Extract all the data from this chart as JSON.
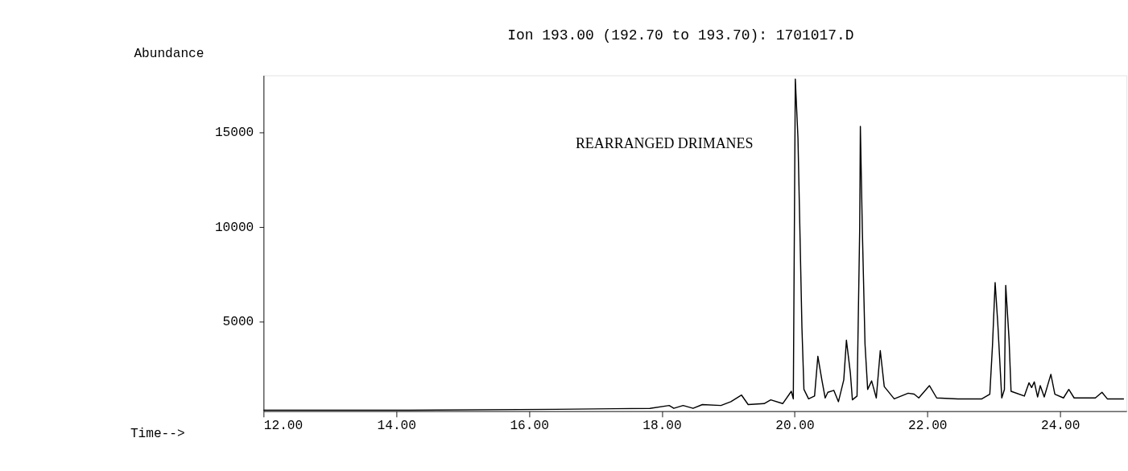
{
  "chart_data": {
    "type": "line",
    "title": "Ion 193.00 (192.70 to 193.70): 1701017.D",
    "xlabel": "Time-->",
    "ylabel": "Abundance",
    "annotations": [
      "REARRANGED DRIMANES"
    ],
    "xlim": [
      12,
      25
    ],
    "xticks": [
      {
        "value": 12,
        "label": "12.00"
      },
      {
        "value": 14,
        "label": "14.00"
      },
      {
        "value": 16,
        "label": "16.00"
      },
      {
        "value": 18,
        "label": "18.00"
      },
      {
        "value": 20,
        "label": "20.00"
      },
      {
        "value": 22,
        "label": "22.00"
      },
      {
        "value": 24,
        "label": "24.00"
      }
    ],
    "ylim": [
      250,
      18000
    ],
    "yticks": [
      5000,
      10000,
      15000
    ],
    "grid": false,
    "marker": "none",
    "line_style": "solid",
    "series": [
      {
        "color": "#000000",
        "x": [
          12.0,
          14.0,
          16.4,
          17.82,
          18.11,
          18.18,
          18.32,
          18.47,
          18.61,
          18.89,
          19.04,
          19.2,
          19.3,
          19.54,
          19.64,
          19.82,
          19.95,
          19.98,
          20.01,
          20.05,
          20.11,
          20.14,
          20.21,
          20.3,
          20.35,
          20.41,
          20.46,
          20.5,
          20.59,
          20.66,
          20.74,
          20.78,
          20.84,
          20.87,
          20.94,
          20.98,
          20.99,
          21.02,
          21.06,
          21.1,
          21.16,
          21.23,
          21.29,
          21.35,
          21.5,
          21.71,
          21.8,
          21.87,
          22.03,
          22.14,
          22.46,
          22.82,
          22.94,
          22.98,
          23.02,
          23.06,
          23.12,
          23.16,
          23.18,
          23.23,
          23.26,
          23.46,
          23.53,
          23.57,
          23.61,
          23.66,
          23.7,
          23.76,
          23.86,
          23.92,
          24.05,
          24.13,
          24.21,
          24.53,
          24.63,
          24.71,
          24.96
        ],
        "values": [
          300,
          300,
          350,
          400,
          550,
          400,
          550,
          400,
          600,
          550,
          750,
          1100,
          600,
          650,
          850,
          650,
          1300,
          900,
          17800,
          14700,
          4650,
          1400,
          900,
          1050,
          3150,
          1900,
          950,
          1250,
          1350,
          750,
          1900,
          4000,
          2250,
          850,
          1050,
          9900,
          15300,
          9800,
          3800,
          1400,
          1850,
          950,
          3450,
          1550,
          900,
          1200,
          1150,
          950,
          1600,
          950,
          900,
          900,
          1150,
          3700,
          7050,
          4900,
          950,
          1400,
          6900,
          4050,
          1300,
          1050,
          1750,
          1500,
          1800,
          1000,
          1600,
          1000,
          2200,
          1150,
          950,
          1400,
          950,
          950,
          1250,
          900,
          900
        ]
      }
    ]
  }
}
